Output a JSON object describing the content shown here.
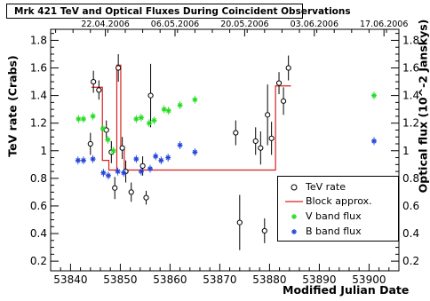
{
  "chart_data": {
    "type": "scatter",
    "title": "Mrk 421 TeV and Optical Fluxes During Coincident Observations",
    "xlabel": "Modified Julian Date",
    "ylabel_left": "TeV rate (Crabs)",
    "ylabel_right": "Optical flux (10^-2 Janskys)",
    "xlim": [
      53836,
      53906
    ],
    "ylim": [
      0.13,
      1.88
    ],
    "x_ticks": [
      53840,
      53850,
      53860,
      53870,
      53880,
      53890,
      53900
    ],
    "y_ticks": [
      0.2,
      0.4,
      0.6,
      0.8,
      1,
      1.2,
      1.4,
      1.6,
      1.8
    ],
    "top_axis_dates": [
      {
        "label": "22.04.2006",
        "mjd": 53847
      },
      {
        "label": "06.05.2006",
        "mjd": 53861
      },
      {
        "label": "20.05.2006",
        "mjd": 53875
      },
      {
        "label": "03.06.2006",
        "mjd": 53889
      },
      {
        "label": "17.06.2006",
        "mjd": 53903
      }
    ],
    "grid": false,
    "legend_position": "bottom-right",
    "legend": [
      "TeV rate",
      "Block approx.",
      "V band flux",
      "B band flux"
    ],
    "series": [
      {
        "name": "TeV rate",
        "marker": "open-circle",
        "color": "#000000",
        "points": [
          {
            "x": 53844.0,
            "y": 1.05,
            "err": 0.08
          },
          {
            "x": 53844.6,
            "y": 1.5,
            "err": 0.08
          },
          {
            "x": 53845.7,
            "y": 1.44,
            "err": 0.07
          },
          {
            "x": 53847.2,
            "y": 1.15,
            "err": 0.07
          },
          {
            "x": 53848.2,
            "y": 0.99,
            "err": 0.08
          },
          {
            "x": 53848.9,
            "y": 0.73,
            "err": 0.08
          },
          {
            "x": 53849.6,
            "y": 1.6,
            "err": 0.1
          },
          {
            "x": 53850.4,
            "y": 1.02,
            "err": 0.08
          },
          {
            "x": 53851.1,
            "y": 0.85,
            "err": 0.08
          },
          {
            "x": 53852.2,
            "y": 0.7,
            "err": 0.07
          },
          {
            "x": 53854.5,
            "y": 0.89,
            "err": 0.07
          },
          {
            "x": 53855.2,
            "y": 0.66,
            "err": 0.05
          },
          {
            "x": 53856.1,
            "y": 1.4,
            "err": 0.23
          },
          {
            "x": 53873.2,
            "y": 1.13,
            "err": 0.09
          },
          {
            "x": 53874.0,
            "y": 0.48,
            "err": 0.2
          },
          {
            "x": 53877.2,
            "y": 1.07,
            "err": 0.1
          },
          {
            "x": 53878.2,
            "y": 1.02,
            "err": 0.12
          },
          {
            "x": 53879.0,
            "y": 0.42,
            "err": 0.09
          },
          {
            "x": 53879.6,
            "y": 1.26,
            "err": 0.22
          },
          {
            "x": 53880.4,
            "y": 1.09,
            "err": 0.12
          },
          {
            "x": 53881.9,
            "y": 1.49,
            "err": 0.08
          },
          {
            "x": 53882.8,
            "y": 1.36,
            "err": 0.1
          },
          {
            "x": 53883.8,
            "y": 1.6,
            "err": 0.09
          }
        ]
      },
      {
        "name": "Block approx.",
        "style": "step-line",
        "color": "#d92020",
        "steps": [
          {
            "x": [
              53844.2,
              53846.4
            ],
            "y": 1.46
          },
          {
            "x": [
              53846.4,
              53847.7
            ],
            "y": 0.93
          },
          {
            "x": [
              53847.7,
              53849.3
            ],
            "y": 0.86
          },
          {
            "x": [
              53849.3,
              53850.1
            ],
            "y": 1.62
          },
          {
            "x": [
              53850.1,
              53850.8
            ],
            "y": 1.03
          },
          {
            "x": [
              53850.8,
              53881.2
            ],
            "y": 0.86
          },
          {
            "x": [
              53881.2,
              53884.3
            ],
            "y": 1.47
          }
        ]
      },
      {
        "name": "V band flux",
        "marker": "star",
        "color": "#22dd22",
        "points": [
          {
            "x": 53841.6,
            "y": 1.23
          },
          {
            "x": 53842.6,
            "y": 1.23
          },
          {
            "x": 53844.5,
            "y": 1.25
          },
          {
            "x": 53846.5,
            "y": 1.16
          },
          {
            "x": 53847.5,
            "y": 1.08
          },
          {
            "x": 53848.6,
            "y": 1.0
          },
          {
            "x": 53853.2,
            "y": 1.23
          },
          {
            "x": 53854.2,
            "y": 1.24
          },
          {
            "x": 53855.8,
            "y": 1.2
          },
          {
            "x": 53856.8,
            "y": 1.22
          },
          {
            "x": 53858.8,
            "y": 1.3
          },
          {
            "x": 53859.7,
            "y": 1.29
          },
          {
            "x": 53862.0,
            "y": 1.33
          },
          {
            "x": 53865.0,
            "y": 1.37
          },
          {
            "x": 53901.0,
            "y": 1.4
          }
        ]
      },
      {
        "name": "B band flux",
        "marker": "star",
        "color": "#2244dd",
        "points": [
          {
            "x": 53841.5,
            "y": 0.93
          },
          {
            "x": 53842.6,
            "y": 0.93
          },
          {
            "x": 53844.5,
            "y": 0.94
          },
          {
            "x": 53846.6,
            "y": 0.84
          },
          {
            "x": 53847.6,
            "y": 0.82
          },
          {
            "x": 53849.5,
            "y": 0.85
          },
          {
            "x": 53850.7,
            "y": 0.84
          },
          {
            "x": 53853.2,
            "y": 0.94
          },
          {
            "x": 53854.2,
            "y": 0.85
          },
          {
            "x": 53856.0,
            "y": 0.87
          },
          {
            "x": 53857.1,
            "y": 0.96
          },
          {
            "x": 53858.2,
            "y": 0.93
          },
          {
            "x": 53859.6,
            "y": 0.95
          },
          {
            "x": 53862.0,
            "y": 1.04
          },
          {
            "x": 53865.0,
            "y": 0.99
          },
          {
            "x": 53901.0,
            "y": 1.07
          }
        ]
      }
    ]
  }
}
